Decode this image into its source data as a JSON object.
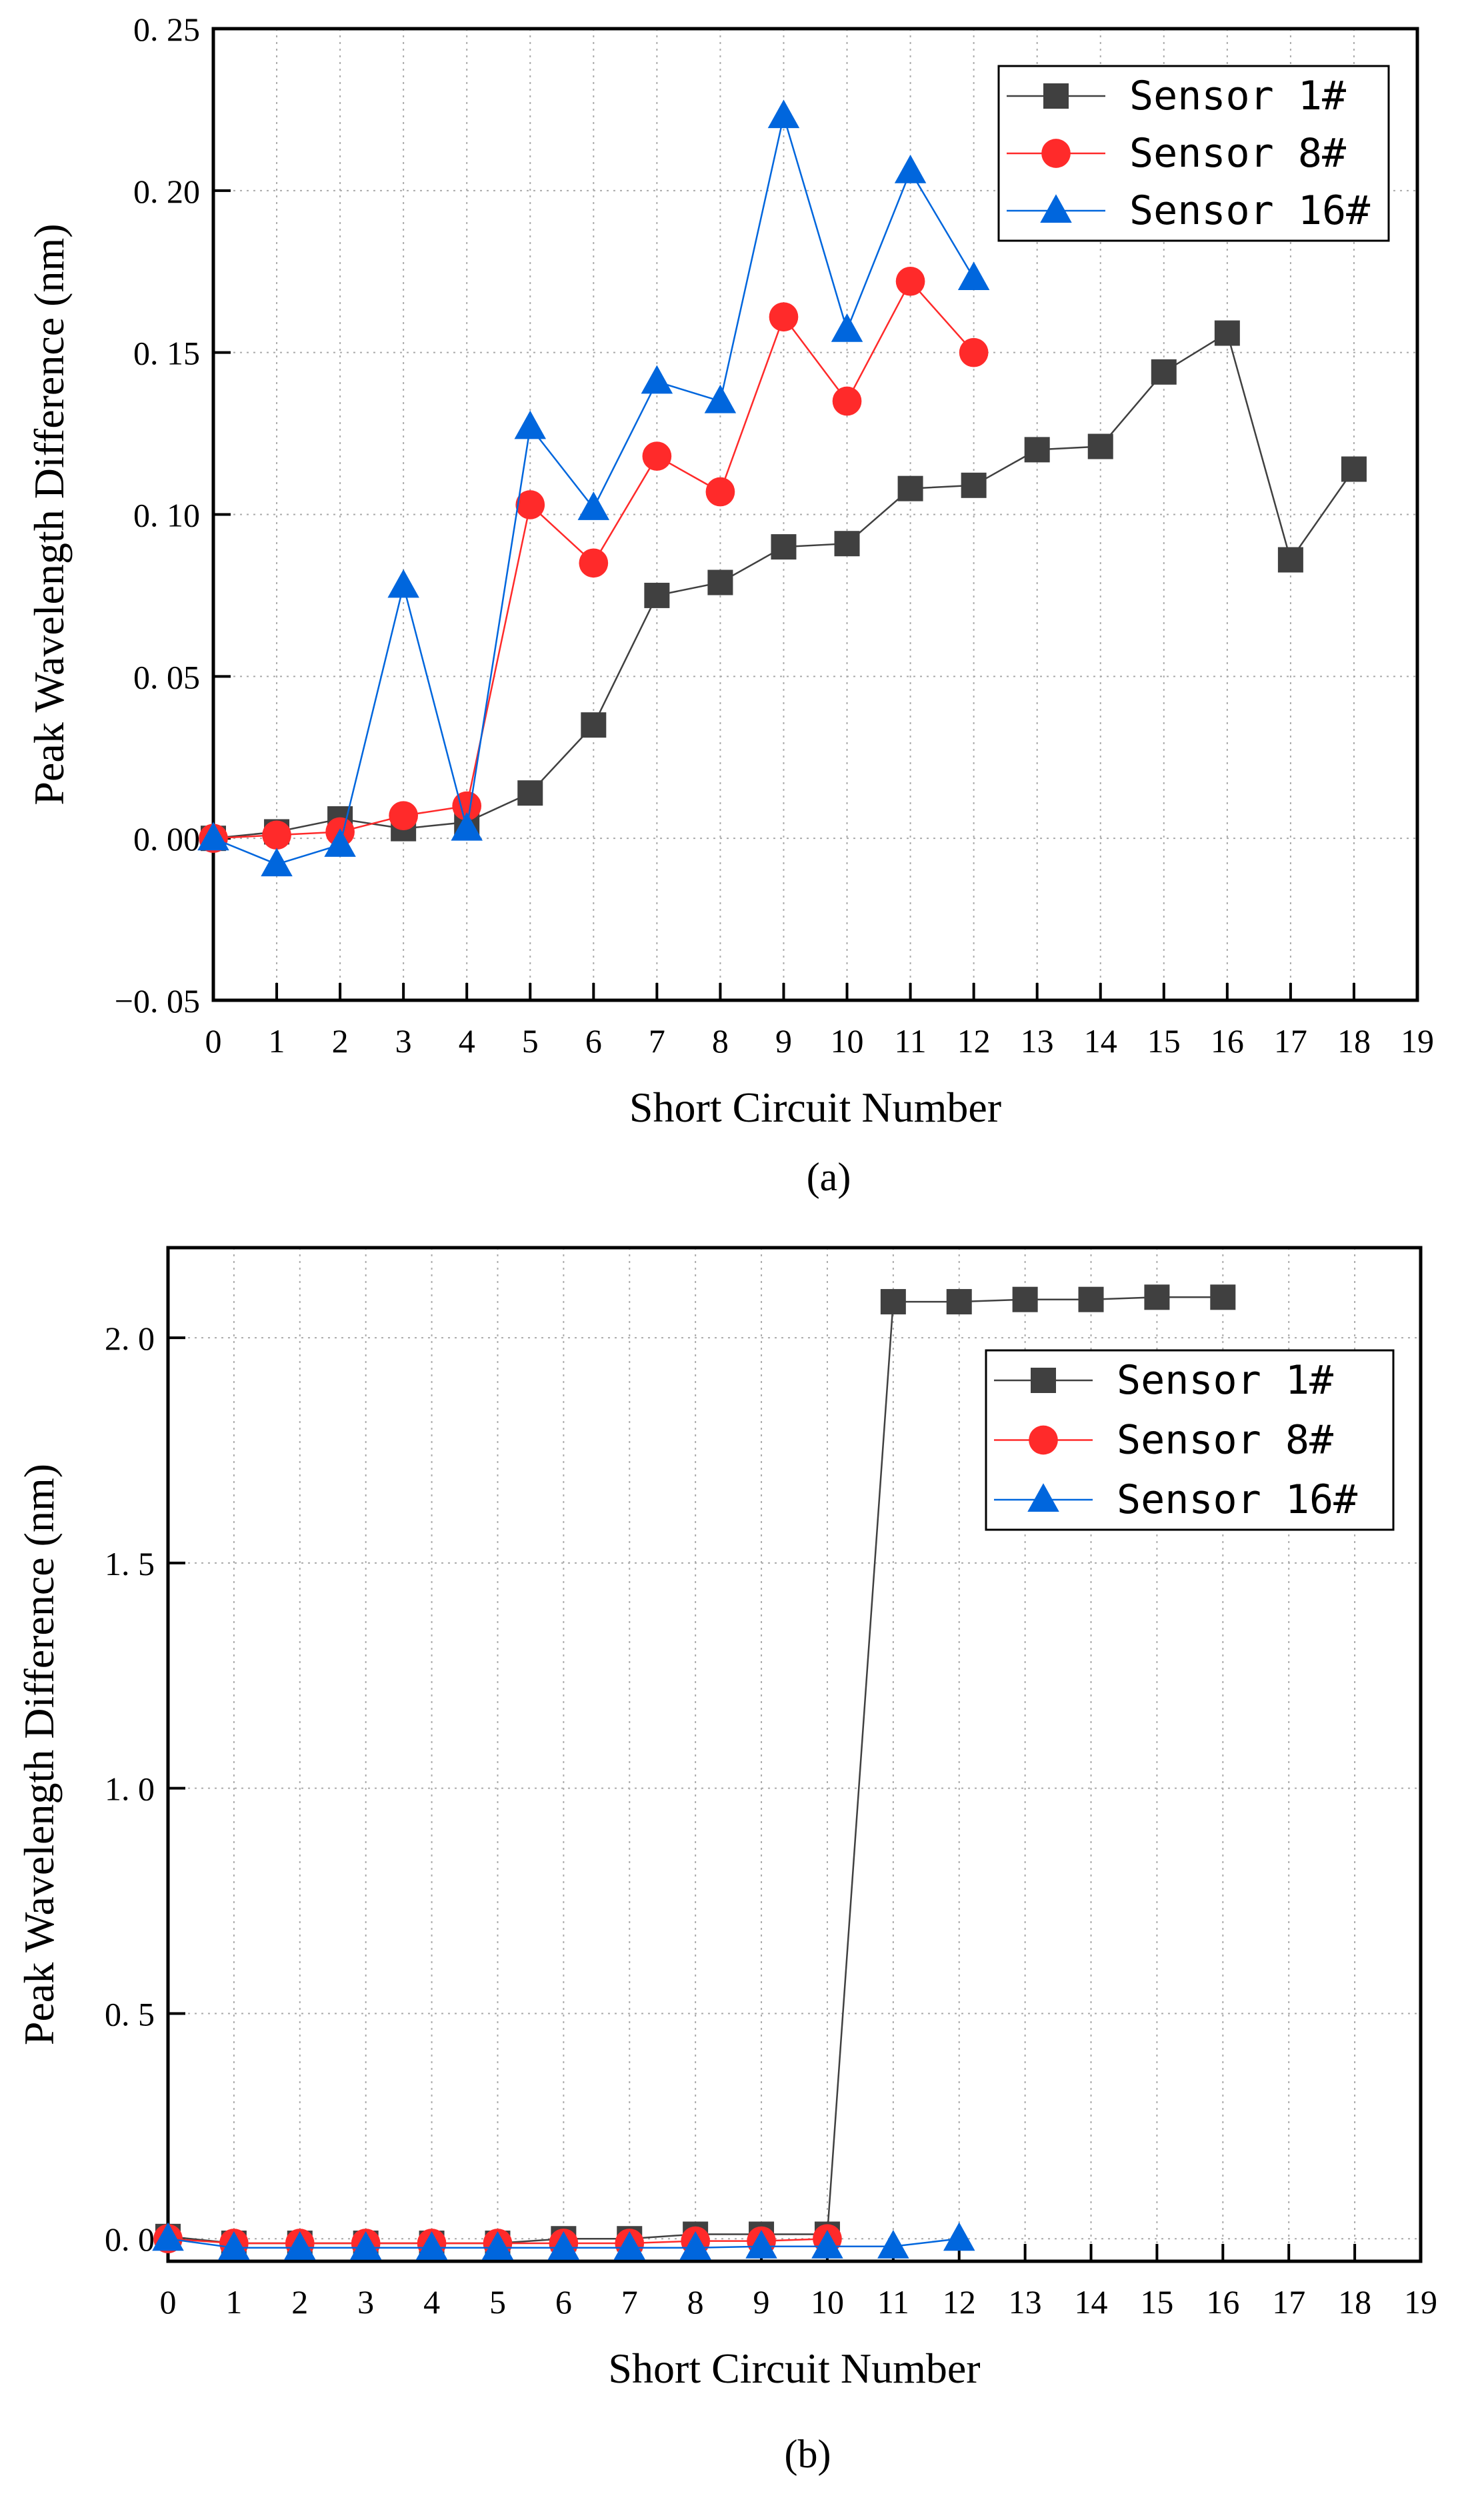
{
  "chart_data": [
    {
      "type": "line",
      "panel_label": "(a)",
      "xlabel": "Short Circuit Number",
      "ylabel": "Peak Wavelength Difference (nm)",
      "xlim": [
        0,
        19
      ],
      "ylim": [
        -0.05,
        0.25
      ],
      "yticks": [
        -0.05,
        0.0,
        0.05,
        0.1,
        0.15,
        0.2,
        0.25
      ],
      "ytick_labels": [
        "−0. 05",
        "0. 00",
        "0. 05",
        "0. 10",
        "0. 15",
        "0. 20",
        "0. 25"
      ],
      "xticks": [
        0,
        1,
        2,
        3,
        4,
        5,
        6,
        7,
        8,
        9,
        10,
        11,
        12,
        13,
        14,
        15,
        16,
        17,
        18,
        19
      ],
      "grid": true,
      "legend_position": "top-right",
      "series": [
        {
          "name": "Sensor  1#",
          "color": "#404040",
          "marker": "square",
          "x": [
            0,
            1,
            2,
            3,
            4,
            5,
            6,
            7,
            8,
            9,
            10,
            11,
            12,
            13,
            14,
            15,
            16,
            17,
            18
          ],
          "values": [
            0.0,
            0.002,
            0.006,
            0.003,
            0.005,
            0.014,
            0.035,
            0.075,
            0.079,
            0.09,
            0.091,
            0.108,
            0.109,
            0.12,
            0.121,
            0.144,
            0.156,
            0.086,
            0.114
          ]
        },
        {
          "name": "Sensor  8#",
          "color": "#ff2a2a",
          "marker": "circle",
          "x": [
            0,
            1,
            2,
            3,
            4,
            5,
            6,
            7,
            8,
            9,
            10,
            11,
            12
          ],
          "values": [
            0.0,
            0.001,
            0.002,
            0.007,
            0.01,
            0.103,
            0.085,
            0.118,
            0.107,
            0.161,
            0.135,
            0.172,
            0.15
          ]
        },
        {
          "name": "Sensor  16#",
          "color": "#0066dd",
          "marker": "triangle",
          "x": [
            0,
            1,
            2,
            3,
            4,
            5,
            6,
            7,
            8,
            9,
            10,
            11,
            12
          ],
          "values": [
            0.0,
            -0.008,
            -0.002,
            0.078,
            0.003,
            0.127,
            0.102,
            0.141,
            0.135,
            0.223,
            0.157,
            0.206,
            0.173
          ]
        }
      ]
    },
    {
      "type": "line",
      "panel_label": "(b)",
      "xlabel": "Short Circuit Number",
      "ylabel": "Peak Wavelength Difference (nm)",
      "xlim": [
        0,
        19
      ],
      "ylim": [
        -0.05,
        2.2
      ],
      "yticks": [
        0.0,
        0.5,
        1.0,
        1.5,
        2.0
      ],
      "ytick_labels": [
        "0. 0",
        "0. 5",
        "1. 0",
        "1. 5",
        "2. 0"
      ],
      "xticks": [
        0,
        1,
        2,
        3,
        4,
        5,
        6,
        7,
        8,
        9,
        10,
        11,
        12,
        13,
        14,
        15,
        16,
        17,
        18,
        19
      ],
      "grid": true,
      "legend_position": "top-right",
      "series": [
        {
          "name": "Sensor  1#",
          "color": "#404040",
          "marker": "square",
          "x": [
            0,
            1,
            2,
            3,
            4,
            5,
            6,
            7,
            8,
            9,
            10,
            11,
            12,
            13,
            14,
            15,
            16
          ],
          "values": [
            0.005,
            -0.01,
            -0.01,
            -0.01,
            -0.01,
            -0.01,
            0.0,
            0.0,
            0.01,
            0.01,
            0.01,
            2.08,
            2.08,
            2.085,
            2.085,
            2.09,
            2.09
          ]
        },
        {
          "name": "Sensor  8#",
          "color": "#ff2a2a",
          "marker": "circle",
          "x": [
            0,
            1,
            2,
            3,
            4,
            5,
            6,
            7,
            8,
            9,
            10
          ],
          "values": [
            0.0,
            -0.01,
            -0.01,
            -0.01,
            -0.01,
            -0.01,
            -0.01,
            -0.01,
            -0.005,
            -0.005,
            0.0
          ]
        },
        {
          "name": "Sensor  16#",
          "color": "#0066dd",
          "marker": "triangle",
          "x": [
            0,
            1,
            2,
            3,
            4,
            5,
            6,
            7,
            8,
            9,
            10,
            11,
            12
          ],
          "values": [
            0.0,
            -0.02,
            -0.02,
            -0.02,
            -0.02,
            -0.02,
            -0.02,
            -0.02,
            -0.02,
            -0.017,
            -0.017,
            -0.017,
            0.0
          ]
        }
      ]
    }
  ]
}
